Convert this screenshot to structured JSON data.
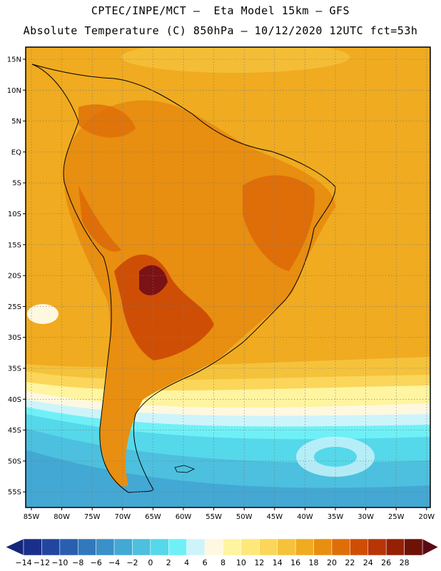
{
  "header": {
    "line1": "CPTEC/INPE/MCT –  Eta Model 15km – GFS",
    "line2": "Absolute Temperature (C) 850hPa – 10/12/2020 12UTC fct=53h"
  },
  "map": {
    "lat_labels": [
      "15N",
      "10N",
      "5N",
      "EQ",
      "5S",
      "10S",
      "15S",
      "20S",
      "25S",
      "30S",
      "35S",
      "40S",
      "45S",
      "50S",
      "55S"
    ],
    "lon_labels": [
      "85W",
      "80W",
      "75W",
      "70W",
      "65W",
      "60W",
      "55W",
      "50W",
      "45W",
      "40W",
      "35W",
      "30W",
      "25W",
      "20W"
    ],
    "grid": true
  },
  "colorbar": {
    "labels": [
      "-14",
      "-12",
      "-10",
      "-8",
      "-6",
      "-4",
      "-2",
      "0",
      "2",
      "4",
      "6",
      "8",
      "10",
      "12",
      "14",
      "16",
      "18",
      "20",
      "22",
      "24",
      "26",
      "28"
    ],
    "colors": [
      "#1a2f8a",
      "#2246a0",
      "#2a5fb0",
      "#3278bc",
      "#3a90c8",
      "#43a8d4",
      "#4cc0de",
      "#55d8ea",
      "#6ff0f6",
      "#cdf4fb",
      "#fff8e0",
      "#fff4a0",
      "#ffe87a",
      "#fbd65a",
      "#f5c23c",
      "#f0ab20",
      "#e88e10",
      "#df6e08",
      "#cf4e05",
      "#b83505",
      "#962004",
      "#6e1206"
    ],
    "low_arrow_color": "#14267a",
    "high_arrow_color": "#5a0a16"
  }
}
